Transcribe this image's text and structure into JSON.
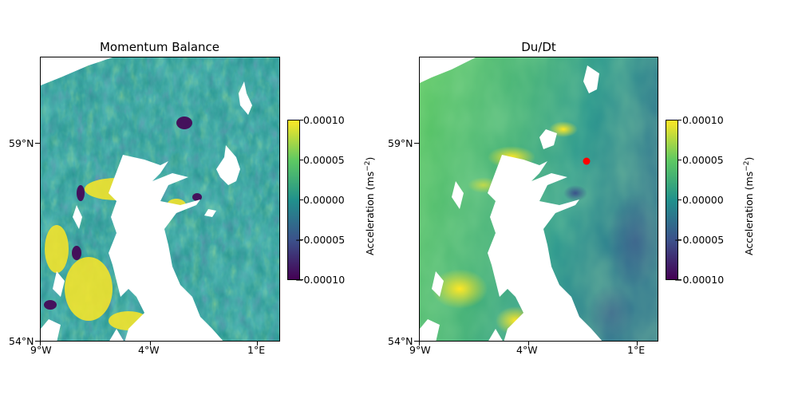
{
  "panels": [
    {
      "title": "Momentum Balance",
      "x_ticks": [
        "9°W",
        "4°W",
        "1°E"
      ],
      "y_ticks": [
        "59°N",
        "54°N"
      ],
      "colorbar": {
        "ticks": [
          "0.00010",
          "0.00005",
          "0.00000",
          "−0.00005",
          "−0.00010"
        ],
        "label": "Acceleration (ms",
        "label_exp": "−2",
        "label_close": ")"
      }
    },
    {
      "title": "Du/Dt",
      "x_ticks": [
        "9°W",
        "4°W",
        "1°E"
      ],
      "y_ticks": [
        "59°N",
        "54°N"
      ],
      "colorbar": {
        "ticks": [
          "0.00010",
          "0.00005",
          "0.00000",
          "−0.00005",
          "−0.00010"
        ],
        "label": "Acceleration (ms",
        "label_exp": "−2",
        "label_close": ")"
      }
    }
  ],
  "colormap": "viridis",
  "colors": {
    "marker": "#ff0000",
    "land": "#ffffff"
  }
}
